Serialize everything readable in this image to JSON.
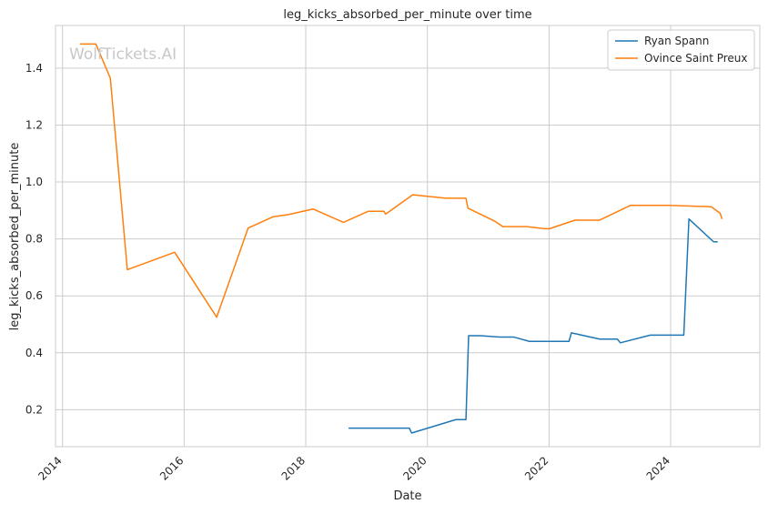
{
  "watermark": "WolfTickets.AI",
  "chart_data": {
    "type": "line",
    "title": "leg_kicks_absorbed_per_minute over time",
    "xlabel": "Date",
    "ylabel": "leg_kicks_absorbed_per_minute",
    "x_ticks": [
      "2014",
      "2016",
      "2018",
      "2020",
      "2022",
      "2024"
    ],
    "y_ticks": [
      "0.2",
      "0.4",
      "0.6",
      "0.8",
      "1.0",
      "1.2",
      "1.4"
    ],
    "xlim": [
      "2013-11-20",
      "2025-06-20"
    ],
    "ylim": [
      0.07,
      1.55
    ],
    "grid": true,
    "legend": "top-right",
    "series": [
      {
        "name": "Ryan Spann",
        "color": "#1f77b4",
        "points": [
          [
            "2018-09-15",
            0.135
          ],
          [
            "2019-09-15",
            0.135
          ],
          [
            "2019-09-28",
            0.118
          ],
          [
            "2020-06-20",
            0.165
          ],
          [
            "2020-08-20",
            0.165
          ],
          [
            "2020-09-05",
            0.46
          ],
          [
            "2020-11-15",
            0.46
          ],
          [
            "2021-03-10",
            0.455
          ],
          [
            "2021-06-05",
            0.455
          ],
          [
            "2021-09-05",
            0.44
          ],
          [
            "2022-05-01",
            0.44
          ],
          [
            "2022-05-15",
            0.47
          ],
          [
            "2022-11-01",
            0.448
          ],
          [
            "2023-02-15",
            0.448
          ],
          [
            "2023-03-05",
            0.435
          ],
          [
            "2023-09-01",
            0.462
          ],
          [
            "2024-03-20",
            0.462
          ],
          [
            "2024-04-20",
            0.87
          ],
          [
            "2024-09-15",
            0.79
          ],
          [
            "2024-10-10",
            0.79
          ]
        ]
      },
      {
        "name": "Ovince Saint Preux",
        "color": "#ff7f0e",
        "points": [
          [
            "2014-04-15",
            1.485
          ],
          [
            "2014-07-20",
            1.485
          ],
          [
            "2014-10-15",
            1.365
          ],
          [
            "2015-01-25",
            0.692
          ],
          [
            "2015-11-05",
            0.753
          ],
          [
            "2016-07-15",
            0.525
          ],
          [
            "2017-01-20",
            0.838
          ],
          [
            "2017-06-20",
            0.878
          ],
          [
            "2017-09-15",
            0.885
          ],
          [
            "2018-02-15",
            0.905
          ],
          [
            "2018-08-15",
            0.858
          ],
          [
            "2019-01-10",
            0.897
          ],
          [
            "2019-04-15",
            0.897
          ],
          [
            "2019-04-25",
            0.887
          ],
          [
            "2019-10-05",
            0.955
          ],
          [
            "2020-04-20",
            0.943
          ],
          [
            "2020-08-20",
            0.943
          ],
          [
            "2020-09-01",
            0.908
          ],
          [
            "2021-02-10",
            0.862
          ],
          [
            "2021-03-30",
            0.843
          ],
          [
            "2021-08-20",
            0.843
          ],
          [
            "2021-12-05",
            0.836
          ],
          [
            "2022-01-05",
            0.836
          ],
          [
            "2022-06-05",
            0.866
          ],
          [
            "2022-11-01",
            0.866
          ],
          [
            "2023-05-05",
            0.918
          ],
          [
            "2023-12-15",
            0.918
          ],
          [
            "2024-09-01",
            0.913
          ],
          [
            "2024-10-25",
            0.89
          ],
          [
            "2024-11-05",
            0.87
          ]
        ]
      }
    ]
  }
}
